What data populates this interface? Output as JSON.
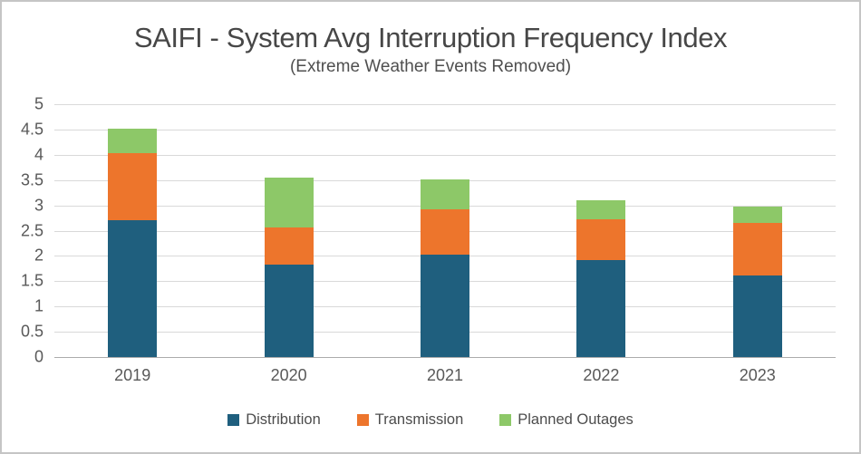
{
  "header": {
    "title": "SAIFI - System Avg Interruption Frequency Index",
    "subtitle": "(Extreme Weather Events Removed)"
  },
  "chart_data": {
    "type": "bar",
    "stacked": true,
    "title": "SAIFI - System Avg Interruption Frequency Index",
    "subtitle": "(Extreme Weather Events Removed)",
    "categories": [
      "2019",
      "2020",
      "2021",
      "2022",
      "2023"
    ],
    "series": [
      {
        "name": "Distribution",
        "color": "#1f5f7e",
        "values": [
          2.7,
          1.83,
          2.03,
          1.91,
          1.61
        ]
      },
      {
        "name": "Transmission",
        "color": "#ed752c",
        "values": [
          1.33,
          0.73,
          0.9,
          0.82,
          1.04
        ]
      },
      {
        "name": "Planned Outages",
        "color": "#8dc868",
        "values": [
          0.49,
          0.99,
          0.58,
          0.37,
          0.33
        ]
      }
    ],
    "totals": [
      4.52,
      3.55,
      3.51,
      3.1,
      2.98
    ],
    "xlabel": "",
    "ylabel": "",
    "ylim": [
      0,
      5
    ],
    "ytick_step": 0.5,
    "ytick_labels": [
      "0",
      "0.5",
      "1",
      "1.5",
      "2",
      "2.5",
      "3",
      "3.5",
      "4",
      "4.5",
      "5"
    ],
    "grid": true,
    "legend_position": "bottom",
    "colors": {
      "gridline": "#d9d9d9",
      "axis_line": "#ababab",
      "tick_label": "#595959",
      "title_text": "#474747",
      "frame_border": "#c5c5c5",
      "background": "#ffffff"
    }
  }
}
